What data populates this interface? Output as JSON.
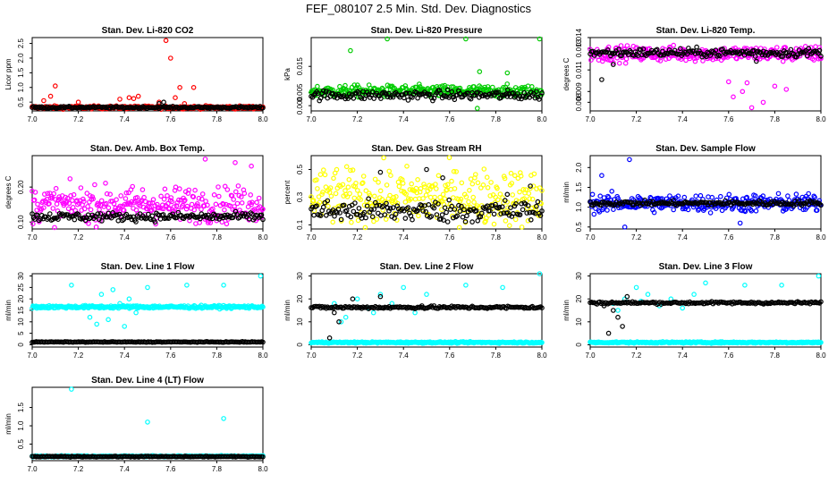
{
  "figure_title": "FEF_080107  2.5 Min. Std. Dev. Diagnostics",
  "colors": {
    "red": "#ff0000",
    "green": "#00cc00",
    "magenta": "#ff00ff",
    "yellow": "#ffff00",
    "blue": "#0000ff",
    "cyan": "#00ffff",
    "black": "#000000"
  },
  "chart_data": [
    {
      "id": "co2",
      "type": "scatter",
      "title": "Stan. Dev. Li-820 CO2",
      "ylabel": "Licor ppm",
      "xlim": [
        7.0,
        8.0
      ],
      "ylim": [
        0.2,
        2.7
      ],
      "xticks": [
        "7.0",
        "7.2",
        "7.4",
        "7.6",
        "7.8",
        "8.0"
      ],
      "yticks": [
        "0.5",
        "1.0",
        "1.5",
        "2.0",
        "2.5"
      ],
      "series": [
        {
          "name": "colored",
          "color": "red",
          "base": 0.32,
          "spread": 0.05,
          "outliers": [
            [
              7.05,
              0.55
            ],
            [
              7.08,
              0.7
            ],
            [
              7.1,
              1.05
            ],
            [
              7.2,
              0.5
            ],
            [
              7.38,
              0.6
            ],
            [
              7.42,
              0.65
            ],
            [
              7.44,
              0.62
            ],
            [
              7.46,
              0.7
            ],
            [
              7.55,
              0.5
            ],
            [
              7.58,
              2.6
            ],
            [
              7.6,
              2.0
            ],
            [
              7.62,
              0.65
            ],
            [
              7.64,
              1.0
            ],
            [
              7.66,
              0.45
            ],
            [
              7.7,
              1.0
            ]
          ]
        },
        {
          "name": "black",
          "color": "black",
          "base": 0.32,
          "spread": 0.03,
          "outliers": [
            [
              7.55,
              0.45
            ],
            [
              7.57,
              0.5
            ]
          ]
        }
      ]
    },
    {
      "id": "pressure",
      "type": "scatter",
      "title": "Stan. Dev. Li-820 Pressure",
      "ylabel": "kPa",
      "xlim": [
        7.0,
        8.0
      ],
      "ylim": [
        -0.002,
        0.026
      ],
      "xticks": [
        "7.0",
        "7.2",
        "7.4",
        "7.6",
        "7.8",
        "8.0"
      ],
      "yticks": [
        "0.000",
        "0.005",
        "0.015"
      ],
      "series": [
        {
          "name": "colored",
          "color": "green",
          "base": 0.0055,
          "spread": 0.0022,
          "outliers": [
            [
              7.17,
              0.021
            ],
            [
              7.33,
              0.0255
            ],
            [
              7.67,
              0.0255
            ],
            [
              7.73,
              0.013
            ],
            [
              7.99,
              0.0255
            ],
            [
              7.85,
              0.0125
            ],
            [
              7.72,
              -0.001
            ]
          ]
        },
        {
          "name": "black",
          "color": "black",
          "base": 0.004,
          "spread": 0.0018,
          "outliers": [
            [
              7.85,
              0.0035
            ]
          ]
        }
      ]
    },
    {
      "id": "temp",
      "type": "scatter",
      "title": "Stan. Dev. Li-820 Temp.",
      "ylabel": "degrees C",
      "xlim": [
        7.0,
        8.0
      ],
      "ylim": [
        0.0072,
        0.014
      ],
      "xticks": [
        "7.0",
        "7.2",
        "7.4",
        "7.6",
        "7.8",
        "8.0"
      ],
      "yticks": [
        "0.008",
        "0.009",
        "0.011",
        "0.013",
        "0.014"
      ],
      "series": [
        {
          "name": "colored",
          "color": "magenta",
          "base": 0.0125,
          "spread": 0.0007,
          "outliers": [
            [
              7.62,
              0.0085
            ],
            [
              7.66,
              0.009
            ],
            [
              7.7,
              0.0075
            ],
            [
              7.75,
              0.008
            ],
            [
              7.8,
              0.0095
            ],
            [
              7.85,
              0.0092
            ],
            [
              7.6,
              0.0099
            ],
            [
              7.68,
              0.0098
            ]
          ]
        },
        {
          "name": "black",
          "color": "black",
          "base": 0.0126,
          "spread": 0.0004,
          "outliers": [
            [
              7.05,
              0.0101
            ],
            [
              7.1,
              0.0115
            ],
            [
              7.72,
              0.0118
            ]
          ]
        }
      ]
    },
    {
      "id": "ambbox",
      "type": "scatter",
      "title": "Stan. Dev. Amb. Box Temp.",
      "ylabel": "degrees C",
      "xlim": [
        7.0,
        8.0
      ],
      "ylim": [
        0.08,
        0.29
      ],
      "xticks": [
        "7.0",
        "7.2",
        "7.4",
        "7.6",
        "7.8",
        "8.0"
      ],
      "yticks": [
        "0.10",
        "0.20"
      ],
      "series": [
        {
          "name": "colored",
          "color": "magenta",
          "base": 0.15,
          "spread": 0.05,
          "outliers": [
            [
              7.75,
              0.28
            ],
            [
              7.88,
              0.27
            ],
            [
              7.95,
              0.26
            ]
          ]
        },
        {
          "name": "black",
          "color": "black",
          "base": 0.115,
          "spread": 0.012,
          "outliers": []
        }
      ]
    },
    {
      "id": "rh",
      "type": "scatter",
      "title": "Stan. Dev. Gas Stream RH",
      "ylabel": "percent",
      "xlim": [
        7.0,
        8.0
      ],
      "ylim": [
        0.07,
        0.6
      ],
      "xticks": [
        "7.0",
        "7.2",
        "7.4",
        "7.6",
        "7.8",
        "8.0"
      ],
      "yticks": [
        "0.1",
        "0.3",
        "0.5"
      ],
      "series": [
        {
          "name": "colored",
          "color": "yellow",
          "base": 0.3,
          "spread": 0.2,
          "outliers": []
        },
        {
          "name": "black",
          "color": "black",
          "base": 0.2,
          "spread": 0.08,
          "outliers": [
            [
              7.3,
              0.48
            ],
            [
              7.5,
              0.5
            ],
            [
              7.57,
              0.44
            ],
            [
              7.85,
              0.32
            ],
            [
              7.95,
              0.38
            ]
          ]
        }
      ]
    },
    {
      "id": "sample",
      "type": "scatter",
      "title": "Stan. Dev. Sample Flow",
      "ylabel": "ml/min",
      "xlim": [
        7.0,
        8.0
      ],
      "ylim": [
        0.45,
        2.3
      ],
      "xticks": [
        "7.0",
        "7.2",
        "7.4",
        "7.6",
        "7.8",
        "8.0"
      ],
      "yticks": [
        "0.5",
        "1.0",
        "1.5",
        "2.0"
      ],
      "series": [
        {
          "name": "colored",
          "color": "blue",
          "base": 1.1,
          "spread": 0.22,
          "outliers": [
            [
              7.17,
              2.2
            ],
            [
              7.15,
              0.5
            ],
            [
              7.05,
              1.8
            ],
            [
              7.65,
              0.6
            ]
          ]
        },
        {
          "name": "black",
          "color": "black",
          "base": 1.1,
          "spread": 0.06,
          "outliers": []
        }
      ]
    },
    {
      "id": "line1",
      "type": "scatter",
      "title": "Stan. Dev. Line 1 Flow",
      "ylabel": "ml/min",
      "xlim": [
        7.0,
        8.0
      ],
      "ylim": [
        -1,
        31
      ],
      "xticks": [
        "7.0",
        "7.2",
        "7.4",
        "7.6",
        "7.8",
        "8.0"
      ],
      "yticks": [
        "0",
        "5",
        "10",
        "15",
        "20",
        "25",
        "30"
      ],
      "series": [
        {
          "name": "colored",
          "color": "cyan",
          "base": 16.5,
          "spread": 0.6,
          "outliers": [
            [
              7.17,
              26
            ],
            [
              7.35,
              24
            ],
            [
              7.3,
              22
            ],
            [
              7.25,
              12
            ],
            [
              7.28,
              9
            ],
            [
              7.4,
              8
            ],
            [
              7.45,
              14
            ],
            [
              7.38,
              18
            ],
            [
              7.42,
              20
            ],
            [
              7.33,
              11
            ],
            [
              7.5,
              25
            ],
            [
              7.67,
              26
            ],
            [
              7.83,
              26
            ],
            [
              7.99,
              30
            ]
          ]
        },
        {
          "name": "black",
          "color": "black",
          "base": 1.2,
          "spread": 0.15,
          "outliers": []
        }
      ]
    },
    {
      "id": "line2",
      "type": "scatter",
      "title": "Stan. Dev. Line 2 Flow",
      "ylabel": "ml/min",
      "xlim": [
        7.0,
        8.0
      ],
      "ylim": [
        -1,
        31
      ],
      "xticks": [
        "7.0",
        "7.2",
        "7.4",
        "7.6",
        "7.8",
        "8.0"
      ],
      "yticks": [
        "0",
        "10",
        "20",
        "30"
      ],
      "series": [
        {
          "name": "colored",
          "color": "cyan",
          "base": 1.0,
          "spread": 0.3,
          "outliers": [
            [
              7.1,
              18
            ],
            [
              7.15,
              12
            ],
            [
              7.2,
              20
            ],
            [
              7.25,
              16
            ],
            [
              7.3,
              22
            ],
            [
              7.35,
              18
            ],
            [
              7.4,
              25
            ],
            [
              7.45,
              14
            ],
            [
              7.5,
              22
            ],
            [
              7.67,
              26
            ],
            [
              7.83,
              25
            ],
            [
              7.99,
              31
            ],
            [
              7.13,
              10
            ],
            [
              7.27,
              14
            ]
          ]
        },
        {
          "name": "black",
          "color": "black",
          "base": 16.3,
          "spread": 0.6,
          "outliers": [
            [
              7.08,
              3
            ],
            [
              7.12,
              10
            ],
            [
              7.18,
              20
            ],
            [
              7.1,
              14
            ],
            [
              7.3,
              21
            ],
            [
              7.48,
              17
            ]
          ]
        }
      ]
    },
    {
      "id": "line3",
      "type": "scatter",
      "title": "Stan. Dev. Line 3 Flow",
      "ylabel": "ml/min",
      "xlim": [
        7.0,
        8.0
      ],
      "ylim": [
        -1,
        31
      ],
      "xticks": [
        "7.0",
        "7.2",
        "7.4",
        "7.6",
        "7.8",
        "8.0"
      ],
      "yticks": [
        "0",
        "10",
        "20",
        "30"
      ],
      "series": [
        {
          "name": "colored",
          "color": "cyan",
          "base": 1.0,
          "spread": 0.3,
          "outliers": [
            [
              7.1,
              18
            ],
            [
              7.15,
              20
            ],
            [
              7.2,
              25
            ],
            [
              7.25,
              22
            ],
            [
              7.3,
              17
            ],
            [
              7.35,
              20
            ],
            [
              7.4,
              16
            ],
            [
              7.45,
              22
            ],
            [
              7.5,
              27
            ],
            [
              7.67,
              26
            ],
            [
              7.83,
              26
            ],
            [
              7.99,
              30
            ],
            [
              7.12,
              15
            ],
            [
              7.22,
              19
            ]
          ]
        },
        {
          "name": "black",
          "color": "black",
          "base": 18.3,
          "spread": 0.5,
          "outliers": [
            [
              7.08,
              5
            ],
            [
              7.12,
              12
            ],
            [
              7.14,
              8
            ],
            [
              7.16,
              21
            ],
            [
              7.1,
              15
            ],
            [
              7.06,
              17
            ]
          ]
        }
      ]
    },
    {
      "id": "line4",
      "type": "scatter",
      "title": "Stan. Dev. Line 4 (LT) Flow",
      "ylabel": "ml/min",
      "xlim": [
        7.0,
        8.0
      ],
      "ylim": [
        0.05,
        2.05
      ],
      "xticks": [
        "7.0",
        "7.2",
        "7.4",
        "7.6",
        "7.8",
        "8.0"
      ],
      "yticks": [
        "0.5",
        "1.0",
        "1.5"
      ],
      "series": [
        {
          "name": "colored",
          "color": "cyan",
          "base": 0.17,
          "spread": 0.015,
          "outliers": [
            [
              7.17,
              2.0
            ],
            [
              7.5,
              1.1
            ],
            [
              7.83,
              1.2
            ]
          ]
        },
        {
          "name": "black",
          "color": "black",
          "base": 0.16,
          "spread": 0.012,
          "outliers": []
        }
      ]
    }
  ]
}
